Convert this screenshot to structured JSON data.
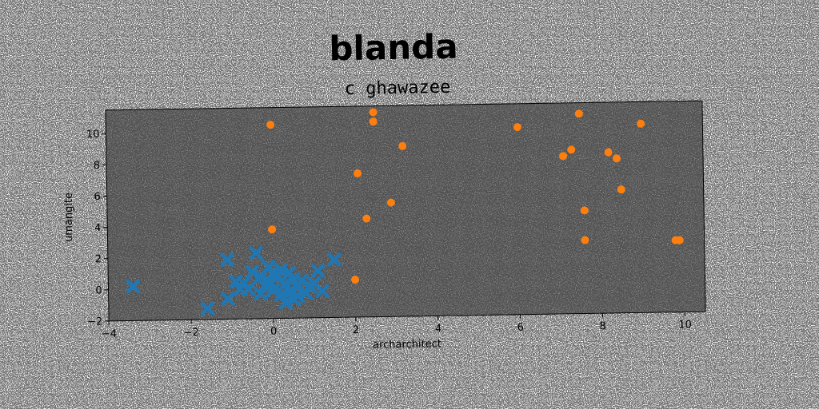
{
  "chart_data": {
    "type": "scatter",
    "title": "blanda",
    "subtitle": "c ghawazee",
    "xlabel": "archarchitect",
    "ylabel": "umangite",
    "xlim": [
      -4,
      10.5
    ],
    "ylim": [
      -2,
      11.5
    ],
    "xticks": [
      -4,
      -2,
      0,
      2,
      4,
      6,
      8,
      10
    ],
    "yticks": [
      -2,
      0,
      2,
      4,
      6,
      8,
      10
    ],
    "xtick_labels": [
      "−4",
      "−2",
      "0",
      "2",
      "4",
      "6",
      "8",
      "10"
    ],
    "ytick_labels": [
      "−2",
      "0",
      "2",
      "4",
      "6",
      "8",
      "10"
    ],
    "grid": false,
    "legend": "none",
    "plot_background": "#808080",
    "series": [
      {
        "color": "#1f77b4",
        "marker": "x",
        "points": [
          [
            -3.4,
            0.2
          ],
          [
            -1.6,
            -1.3
          ],
          [
            -1.1,
            1.8
          ],
          [
            -1.1,
            -0.7
          ],
          [
            -0.8,
            -0.1
          ],
          [
            -0.7,
            0.3
          ],
          [
            -0.5,
            1.0
          ],
          [
            -0.4,
            2.2
          ],
          [
            -0.3,
            0.7
          ],
          [
            -0.3,
            -0.4
          ],
          [
            -0.2,
            0.1
          ],
          [
            -0.1,
            1.3
          ],
          [
            -0.1,
            0.4
          ],
          [
            0.0,
            -0.2
          ],
          [
            0.1,
            0.6
          ],
          [
            0.2,
            -0.5
          ],
          [
            0.2,
            1.1
          ],
          [
            0.3,
            0.2
          ],
          [
            0.3,
            -1.0
          ],
          [
            0.4,
            0.9
          ],
          [
            0.4,
            -0.3
          ],
          [
            0.5,
            0.5
          ],
          [
            0.5,
            -0.8
          ],
          [
            0.6,
            0.0
          ],
          [
            0.7,
            0.4
          ],
          [
            0.8,
            -0.4
          ],
          [
            1.0,
            0.2
          ],
          [
            1.1,
            1.0
          ],
          [
            1.2,
            -0.3
          ],
          [
            1.5,
            1.7
          ],
          [
            -0.6,
            -0.1
          ],
          [
            -0.9,
            0.4
          ],
          [
            0.0,
            0.9
          ],
          [
            0.6,
            -0.6
          ],
          [
            0.9,
            0.0
          ]
        ]
      },
      {
        "color": "#ff7f0e",
        "marker": "o",
        "points": [
          [
            0.0,
            10.4
          ],
          [
            0.0,
            3.7
          ],
          [
            2.0,
            0.4
          ],
          [
            2.1,
            7.2
          ],
          [
            2.3,
            4.3
          ],
          [
            2.5,
            11.1
          ],
          [
            2.5,
            10.5
          ],
          [
            2.9,
            5.3
          ],
          [
            3.2,
            8.9
          ],
          [
            6.0,
            10.0
          ],
          [
            7.1,
            8.1
          ],
          [
            7.3,
            8.5
          ],
          [
            7.5,
            10.8
          ],
          [
            7.6,
            4.6
          ],
          [
            7.6,
            2.7
          ],
          [
            8.2,
            8.3
          ],
          [
            8.4,
            7.9
          ],
          [
            8.5,
            5.9
          ],
          [
            9.0,
            10.1
          ],
          [
            9.8,
            2.6
          ],
          [
            9.9,
            2.6
          ]
        ]
      }
    ]
  }
}
